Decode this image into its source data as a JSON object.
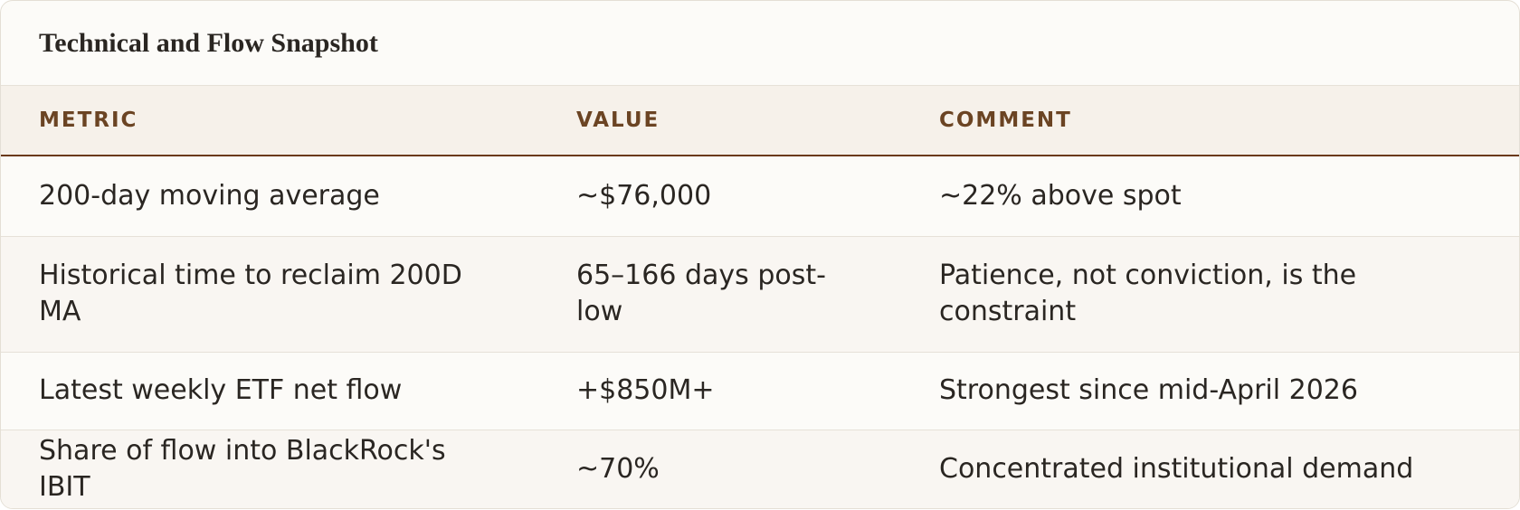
{
  "title": "Technical and Flow Snapshot",
  "table": {
    "columns": [
      "METRIC",
      "VALUE",
      "COMMENT"
    ],
    "rows": [
      [
        "200-day moving average",
        "~$76,000",
        "~22% above spot"
      ],
      [
        "Historical time to reclaim 200D MA",
        "65–166 days post-low",
        "Patience, not conviction, is the constraint"
      ],
      [
        "Latest weekly ETF net flow",
        "+$850M+",
        "Strongest since mid-April 2026"
      ],
      [
        "Share of flow into BlackRock's IBIT",
        "~70%",
        "Concentrated institutional demand"
      ]
    ]
  }
}
